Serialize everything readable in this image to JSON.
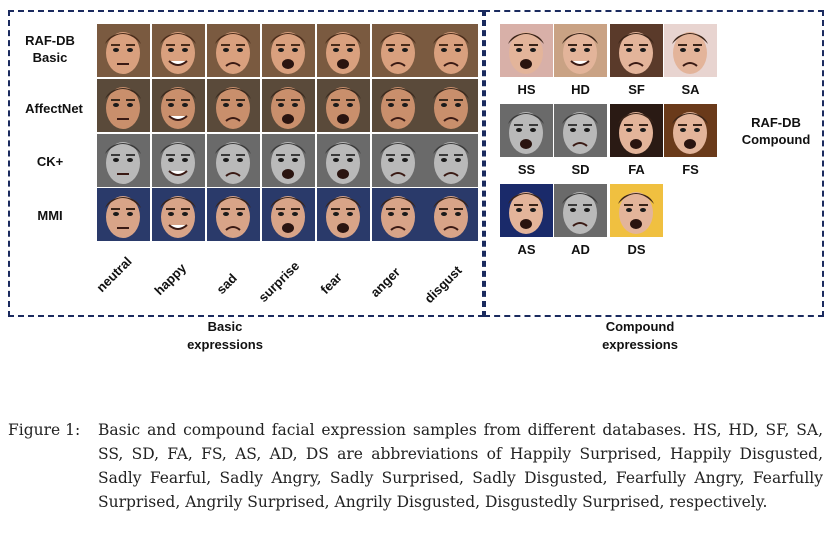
{
  "basic": {
    "row_labels": [
      "RAF-DB\nBasic",
      "AffectNet",
      "CK+",
      "MMI"
    ],
    "col_labels": [
      "neutral",
      "happy",
      "sad",
      "surprise",
      "fear",
      "anger",
      "disgust"
    ],
    "caption": "Basic\nexpressions"
  },
  "compound": {
    "title": "RAF-DB\nCompound",
    "labels": [
      "HS",
      "HD",
      "SF",
      "SA",
      "SS",
      "SD",
      "FA",
      "FS",
      "AS",
      "AD",
      "DS"
    ],
    "caption": "Compound\nexpressions"
  },
  "figure": {
    "number": "Figure 1:",
    "text": "Basic and compound facial expression samples from different databases. HS, HD, SF, SA, SS, SD, FA, FS, AS, AD, DS are abbreviations of Happily Surprised, Happily Disgusted, Sadly Fearful, Sadly Angry, Sadly Surprised, Sadly Disgusted, Fearfully Angry, Fearfully Surprised, Angrily Surprised, Angrily Disgusted, Disgustedly Surprised, respectively."
  }
}
